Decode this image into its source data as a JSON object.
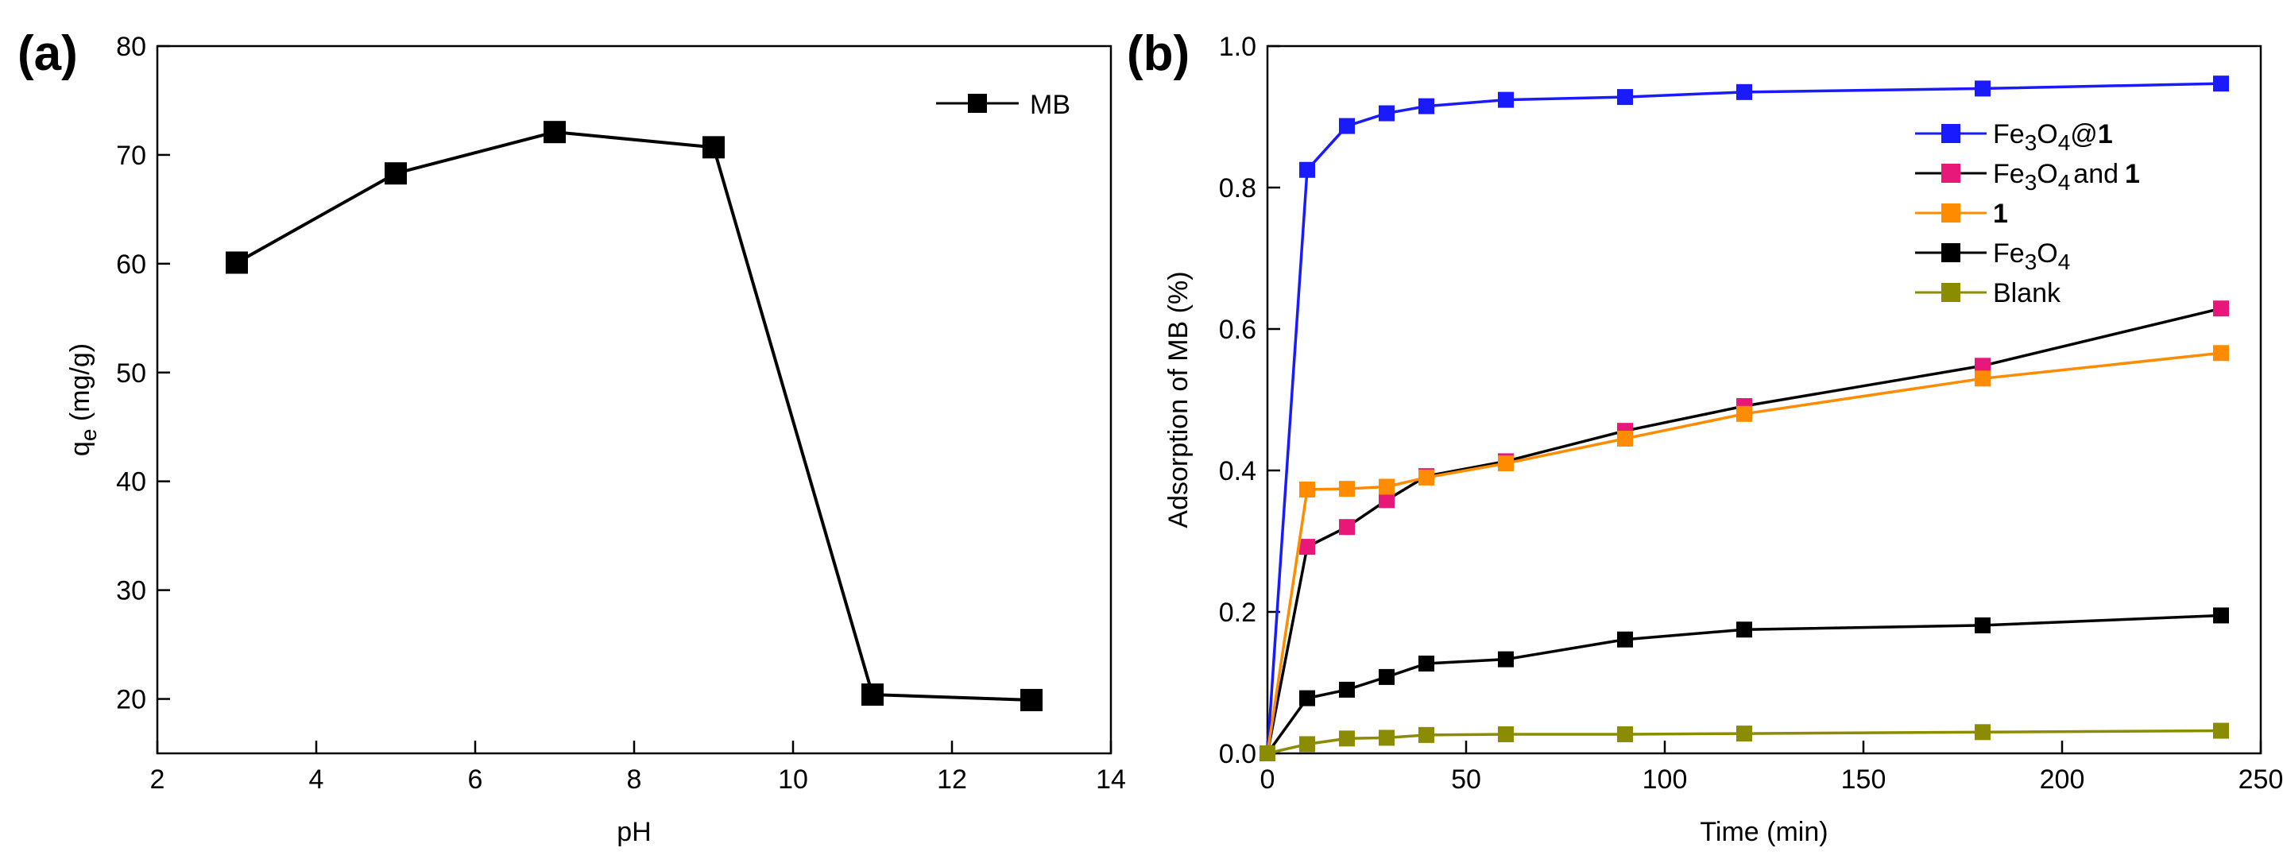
{
  "chart_data": [
    {
      "panel_label": "(a)",
      "type": "line",
      "xlabel": "pH",
      "ylabel": "q",
      "ylabel_sub": "e",
      "ylabel_unit": " (mg/g)",
      "xlim": [
        2,
        14
      ],
      "ylim": [
        15,
        80
      ],
      "xticks": [
        2,
        4,
        6,
        8,
        10,
        12,
        14
      ],
      "yticks": [
        20,
        30,
        40,
        50,
        60,
        70,
        80
      ],
      "legend": [
        {
          "label": "MB",
          "color": "#000000"
        }
      ],
      "series": [
        {
          "name": "MB",
          "color": "#000000",
          "x": [
            3,
            5,
            7,
            9,
            11,
            13
          ],
          "y": [
            60.1,
            68.3,
            72.1,
            70.7,
            20.4,
            19.9
          ]
        }
      ]
    },
    {
      "panel_label": "(b)",
      "type": "line",
      "xlabel": "Time (min)",
      "ylabel": "Adsorption of MB (%)",
      "xlim": [
        0,
        250
      ],
      "ylim": [
        0,
        1.0
      ],
      "xticks": [
        0,
        50,
        100,
        150,
        200,
        250
      ],
      "yticks": [
        "0.0",
        "0.2",
        "0.4",
        "0.6",
        "0.8",
        "1.0"
      ],
      "legend": [
        {
          "label": "Fe3O4@1",
          "color": "#1a1aff"
        },
        {
          "label": "Fe3O4 and 1",
          "color": "#e8177a"
        },
        {
          "label": "1",
          "color": "#ff8c00"
        },
        {
          "label": "Fe3O4",
          "color": "#000000"
        },
        {
          "label": "Blank",
          "color": "#8c8c00"
        }
      ],
      "legend_parts": {
        "fe": "Fe",
        "three": "3",
        "o": "O",
        "four": "4",
        "at": "@",
        "one": "1",
        "and": "and",
        "blank": "Blank"
      },
      "series": [
        {
          "name": "Fe3O4@1",
          "color": "#1a1aff",
          "line_color": "#1a1aff",
          "x": [
            0,
            10,
            20,
            30,
            40,
            60,
            90,
            120,
            180,
            240
          ],
          "y": [
            0.0,
            0.825,
            0.887,
            0.905,
            0.915,
            0.924,
            0.928,
            0.935,
            0.94,
            0.947
          ]
        },
        {
          "name": "Fe3O4 and 1",
          "color": "#e8177a",
          "line_color": "#000000",
          "x": [
            0,
            10,
            20,
            30,
            40,
            60,
            90,
            120,
            180,
            240
          ],
          "y": [
            0.0,
            0.292,
            0.32,
            0.358,
            0.392,
            0.413,
            0.456,
            0.491,
            0.548,
            0.629
          ]
        },
        {
          "name": "1",
          "color": "#ff8c00",
          "line_color": "#ff8c00",
          "x": [
            0,
            10,
            20,
            30,
            40,
            60,
            90,
            120,
            180,
            240
          ],
          "y": [
            0.0,
            0.373,
            0.374,
            0.377,
            0.39,
            0.41,
            0.445,
            0.48,
            0.53,
            0.566
          ]
        },
        {
          "name": "Fe3O4",
          "color": "#000000",
          "line_color": "#000000",
          "x": [
            0,
            10,
            20,
            30,
            40,
            60,
            90,
            120,
            180,
            240
          ],
          "y": [
            0.0,
            0.078,
            0.09,
            0.108,
            0.127,
            0.133,
            0.161,
            0.175,
            0.181,
            0.195
          ]
        },
        {
          "name": "Blank",
          "color": "#8c8c00",
          "line_color": "#8c8c00",
          "x": [
            0,
            10,
            20,
            30,
            40,
            60,
            90,
            120,
            180,
            240
          ],
          "y": [
            0.0,
            0.013,
            0.021,
            0.022,
            0.026,
            0.027,
            0.027,
            0.028,
            0.03,
            0.032
          ]
        }
      ]
    }
  ]
}
